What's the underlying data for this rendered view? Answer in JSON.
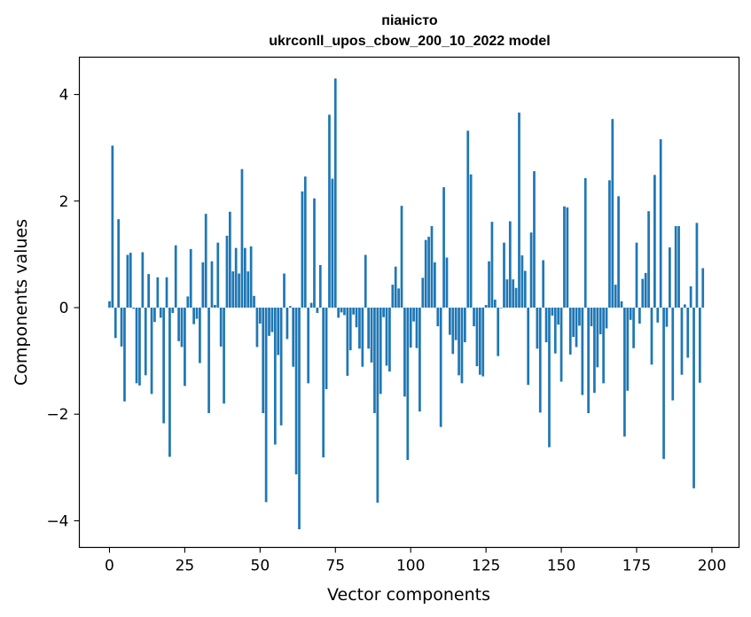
{
  "chart_data": {
    "type": "bar",
    "title": "піаністо",
    "subtitle": "ukrconll_upos_cbow_200_10_2022 model",
    "xlabel": "Vector components",
    "ylabel": "Components values",
    "xlim": [
      -10,
      209
    ],
    "ylim": [
      -4.5,
      4.7
    ],
    "xticks": [
      0,
      25,
      50,
      75,
      100,
      125,
      150,
      175,
      200
    ],
    "yticks": [
      -4,
      -2,
      0,
      2,
      4
    ],
    "ytick_labels": [
      "−4",
      "−2",
      "0",
      "2",
      "4"
    ],
    "bar_color": "#1f77b4",
    "grid": false,
    "values": [
      0.12,
      3.04,
      -0.57,
      1.66,
      -0.73,
      -1.76,
      0.99,
      1.03,
      -0.02,
      -1.42,
      -1.46,
      1.04,
      -1.27,
      0.63,
      -1.62,
      -0.27,
      0.57,
      -0.19,
      -2.17,
      0.57,
      -2.8,
      -0.1,
      1.17,
      -0.63,
      -0.74,
      -1.47,
      0.21,
      1.1,
      -0.31,
      -0.21,
      -1.04,
      0.85,
      1.76,
      -1.98,
      0.87,
      0.05,
      1.22,
      -0.73,
      -1.8,
      1.35,
      1.8,
      0.68,
      1.12,
      0.64,
      2.6,
      1.12,
      0.68,
      1.15,
      0.22,
      -0.74,
      -0.3,
      -1.98,
      -3.65,
      -0.53,
      -0.46,
      -2.57,
      -0.89,
      -2.21,
      0.64,
      -0.59,
      0.03,
      -1.11,
      -3.13,
      -4.16,
      2.18,
      2.46,
      -1.42,
      0.09,
      2.05,
      -0.1,
      0.8,
      -2.81,
      -1.53,
      3.62,
      2.42,
      4.3,
      -0.19,
      -0.09,
      -0.14,
      -1.28,
      -0.8,
      -0.13,
      -0.37,
      -0.77,
      -1.11,
      0.99,
      -0.77,
      -1.03,
      -1.98,
      -3.66,
      -1.62,
      -0.18,
      -1.09,
      -1.2,
      0.43,
      0.77,
      0.36,
      1.91,
      -1.67,
      -2.86,
      -0.75,
      -0.26,
      -0.76,
      -1.95,
      0.56,
      1.27,
      1.33,
      1.53,
      0.85,
      -0.35,
      -2.24,
      2.26,
      0.94,
      -0.51,
      -0.87,
      -0.61,
      -1.27,
      -1.42,
      -0.65,
      3.32,
      2.5,
      -0.35,
      -1.1,
      -1.26,
      -1.29,
      0.05,
      0.87,
      1.61,
      0.15,
      -0.91,
      -0.01,
      1.22,
      0.53,
      1.62,
      0.53,
      0.37,
      3.66,
      0.98,
      0.69,
      -1.45,
      1.41,
      2.56,
      -0.77,
      -1.97,
      0.89,
      -0.65,
      -2.62,
      -0.15,
      -0.86,
      -0.32,
      -1.39,
      1.9,
      1.88,
      -0.88,
      -0.55,
      -0.74,
      -0.34,
      -1.64,
      2.43,
      -1.98,
      -0.35,
      -1.6,
      -1.12,
      -0.5,
      -1.42,
      -0.39,
      2.39,
      3.54,
      0.43,
      2.09,
      0.12,
      -2.42,
      -1.56,
      -0.23,
      -0.76,
      1.22,
      -0.3,
      0.54,
      0.65,
      1.81,
      -1.07,
      2.49,
      -0.28,
      3.16,
      -2.84,
      -0.36,
      1.13,
      -1.74,
      1.53,
      1.53,
      -1.26,
      0.06,
      -0.94,
      0.4,
      -3.39,
      1.59,
      -1.41,
      0.74
    ]
  }
}
